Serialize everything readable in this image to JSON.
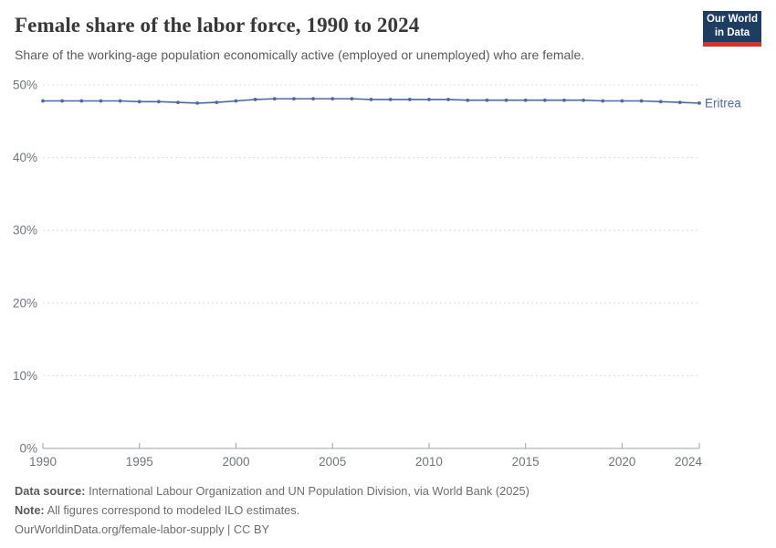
{
  "header": {
    "title": "Female share of the labor force, 1990 to 2024",
    "subtitle": "Share of the working-age population economically active (employed or unemployed) who are female.",
    "logo": {
      "line1": "Our World",
      "line2": "in Data"
    }
  },
  "chart_data": {
    "type": "line",
    "title": "Female share of the labor force, 1990 to 2024",
    "xlabel": "",
    "ylabel": "",
    "xlim": [
      1990,
      2024
    ],
    "ylim": [
      0,
      50
    ],
    "grid": "horizontal-dashed",
    "legend_position": "end-of-line-label",
    "x_tick_labels": [
      "1990",
      "1995",
      "2000",
      "2005",
      "2010",
      "2015",
      "2020",
      "2024"
    ],
    "x_tick_years": [
      1990,
      1995,
      2000,
      2005,
      2010,
      2015,
      2020,
      2024
    ],
    "y_tick_labels": [
      "0%",
      "10%",
      "20%",
      "30%",
      "40%",
      "50%"
    ],
    "y_tick_values": [
      0,
      10,
      20,
      30,
      40,
      50
    ],
    "x": [
      1990,
      1991,
      1992,
      1993,
      1994,
      1995,
      1996,
      1997,
      1998,
      1999,
      2000,
      2001,
      2002,
      2003,
      2004,
      2005,
      2006,
      2007,
      2008,
      2009,
      2010,
      2011,
      2012,
      2013,
      2014,
      2015,
      2016,
      2017,
      2018,
      2019,
      2020,
      2021,
      2022,
      2023,
      2024
    ],
    "series": [
      {
        "name": "Eritrea",
        "color": "#4c6a9c",
        "values": [
          47.8,
          47.8,
          47.8,
          47.8,
          47.8,
          47.7,
          47.7,
          47.6,
          47.5,
          47.6,
          47.8,
          48.0,
          48.1,
          48.1,
          48.1,
          48.1,
          48.1,
          48.0,
          48.0,
          48.0,
          48.0,
          48.0,
          47.9,
          47.9,
          47.9,
          47.9,
          47.9,
          47.9,
          47.9,
          47.8,
          47.8,
          47.8,
          47.7,
          47.6,
          47.5
        ]
      }
    ]
  },
  "footer": {
    "data_source_label": "Data source:",
    "data_source_text": "International Labour Organization and UN Population Division, via World Bank (2025)",
    "note_label": "Note:",
    "note_text": "All figures correspond to modeled ILO estimates.",
    "link_text": "OurWorldinData.org/female-labor-supply | CC BY"
  },
  "colors": {
    "line": "#4c6a9c",
    "series_label": "#4c6a9c",
    "gridline": "#dcdcdc",
    "axis": "#a1a1a1",
    "axis_text": "#70757c",
    "logo_bg": "#1d3d63",
    "logo_stripe": "#cf342e"
  }
}
